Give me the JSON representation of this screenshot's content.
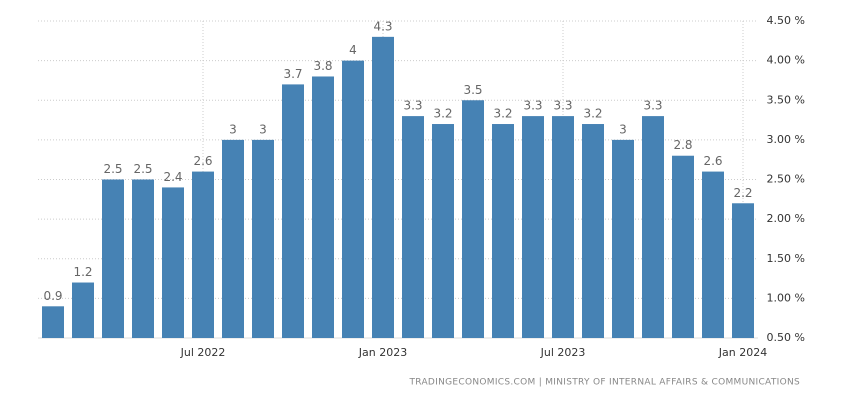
{
  "chart_data": {
    "type": "bar",
    "source": "TRADINGECONOMICS.COM | MINISTRY OF INTERNAL AFFAIRS & COMMUNICATIONS",
    "categories": [
      null,
      null,
      null,
      null,
      null,
      "Jul 2022",
      null,
      null,
      null,
      null,
      null,
      "Jan 2023",
      null,
      null,
      null,
      null,
      null,
      "Jul 2023",
      null,
      null,
      null,
      null,
      null,
      "Jan 2024"
    ],
    "values": [
      0.9,
      1.2,
      2.5,
      2.5,
      2.4,
      2.6,
      3,
      3,
      3.7,
      3.8,
      4,
      4.3,
      3.3,
      3.2,
      3.5,
      3.2,
      3.3,
      3.3,
      3.2,
      3,
      3.3,
      2.8,
      2.6,
      2.2
    ],
    "color": "#4682b4",
    "ylim": [
      0.5,
      4.5
    ],
    "yticks": [
      {
        "value": 0.5,
        "label": "0.50 %"
      },
      {
        "value": 1,
        "label": "1.00 %"
      },
      {
        "value": 1.5,
        "label": "1.50 %"
      },
      {
        "value": 2,
        "label": "2.00 %"
      },
      {
        "value": 2.5,
        "label": "2.50 %"
      },
      {
        "value": 3,
        "label": "3.00 %"
      },
      {
        "value": 3.5,
        "label": "3.50 %"
      },
      {
        "value": 4,
        "label": "4.00 %"
      },
      {
        "value": 4.5,
        "label": "4.50 %"
      }
    ],
    "grid": true
  }
}
